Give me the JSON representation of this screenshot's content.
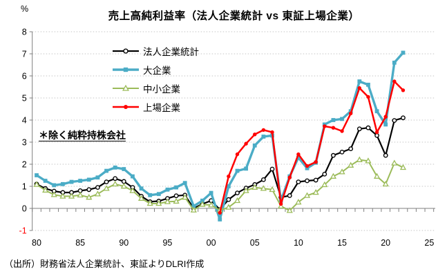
{
  "chart_data": {
    "type": "line",
    "title": "売上高純利益率（法人企業統計 vs 東証上場企業）",
    "unit": "%",
    "annotation": "＊除く純粋持株会社",
    "source": "（出所）財務省法人企業統計、東証よりDLRI作成",
    "legend_position": "upper-left-inside",
    "grid": "dotted-horizontal",
    "x_axis": {
      "tick_years": [
        1980,
        1985,
        1990,
        1995,
        2000,
        2005,
        2010,
        2015,
        2020,
        2025
      ],
      "tick_labels": [
        "80",
        "85",
        "90",
        "95",
        "00",
        "05",
        "10",
        "15",
        "20",
        "25"
      ],
      "minor_ticks_every_year": true,
      "range": [
        1979.5,
        2025.8
      ]
    },
    "y_axis": {
      "ticks": [
        8,
        7,
        6,
        5,
        4,
        3,
        2,
        1,
        0,
        -1
      ],
      "range": [
        -1,
        8
      ],
      "negative_tick_color": "#FF0000"
    },
    "years": [
      1980,
      1981,
      1982,
      1983,
      1984,
      1985,
      1986,
      1987,
      1988,
      1989,
      1990,
      1991,
      1992,
      1993,
      1994,
      1995,
      1996,
      1997,
      1998,
      1999,
      2000,
      2001,
      2002,
      2003,
      2004,
      2005,
      2006,
      2007,
      2008,
      2009,
      2010,
      2011,
      2012,
      2013,
      2014,
      2015,
      2016,
      2017,
      2018,
      2019,
      2020,
      2021,
      2022
    ],
    "series": [
      {
        "name": "法人企業統計",
        "color": "#000000",
        "marker": "circle-open",
        "line_width": 2.2,
        "values": [
          1.1,
          0.9,
          0.78,
          0.72,
          0.72,
          0.8,
          0.85,
          0.95,
          1.2,
          1.35,
          1.22,
          0.95,
          0.55,
          0.3,
          0.33,
          0.45,
          0.57,
          0.6,
          0.0,
          0.2,
          0.35,
          -0.05,
          0.4,
          0.7,
          0.92,
          1.08,
          1.3,
          1.78,
          0.5,
          0.58,
          1.2,
          1.25,
          1.28,
          1.55,
          2.4,
          2.55,
          2.7,
          3.6,
          3.65,
          3.3,
          2.4,
          3.98,
          4.1
        ]
      },
      {
        "name": "大企業",
        "color": "#4BACC6",
        "marker": "square",
        "line_width": 3.4,
        "values": [
          1.5,
          1.25,
          1.05,
          1.1,
          1.2,
          1.25,
          1.3,
          1.4,
          1.7,
          1.85,
          1.78,
          1.45,
          0.9,
          0.6,
          0.65,
          0.85,
          0.95,
          1.15,
          0.1,
          0.35,
          0.7,
          -0.5,
          1.0,
          1.7,
          1.8,
          2.85,
          3.25,
          3.3,
          0.35,
          1.45,
          2.3,
          1.82,
          2.07,
          3.8,
          4.0,
          4.05,
          4.4,
          5.75,
          5.6,
          4.4,
          3.8,
          6.6,
          7.05
        ]
      },
      {
        "name": "中小企業",
        "color": "#9BBB59",
        "marker": "triangle-open",
        "line_width": 2,
        "values": [
          1.08,
          0.82,
          0.62,
          0.55,
          0.55,
          0.6,
          0.5,
          0.65,
          0.9,
          1.1,
          1.0,
          0.8,
          0.45,
          0.22,
          0.22,
          0.3,
          0.32,
          0.5,
          -0.08,
          0.18,
          0.15,
          -0.08,
          0.05,
          0.35,
          0.8,
          0.95,
          0.9,
          0.85,
          0.1,
          -0.1,
          0.28,
          0.58,
          0.72,
          1.07,
          1.45,
          1.65,
          1.95,
          2.2,
          2.15,
          1.45,
          1.1,
          2.05,
          1.85
        ]
      },
      {
        "name": "上場企業",
        "color": "#FF0000",
        "marker": "circle",
        "line_width": 2.5,
        "values": [
          null,
          null,
          null,
          null,
          null,
          null,
          null,
          null,
          null,
          null,
          null,
          null,
          null,
          null,
          null,
          null,
          null,
          null,
          null,
          null,
          null,
          -0.2,
          1.45,
          2.45,
          2.93,
          3.35,
          3.55,
          3.45,
          0.2,
          1.4,
          2.45,
          1.92,
          2.1,
          3.72,
          3.65,
          3.5,
          4.3,
          5.45,
          5.05,
          3.45,
          4.15,
          5.75,
          5.35
        ]
      }
    ]
  }
}
